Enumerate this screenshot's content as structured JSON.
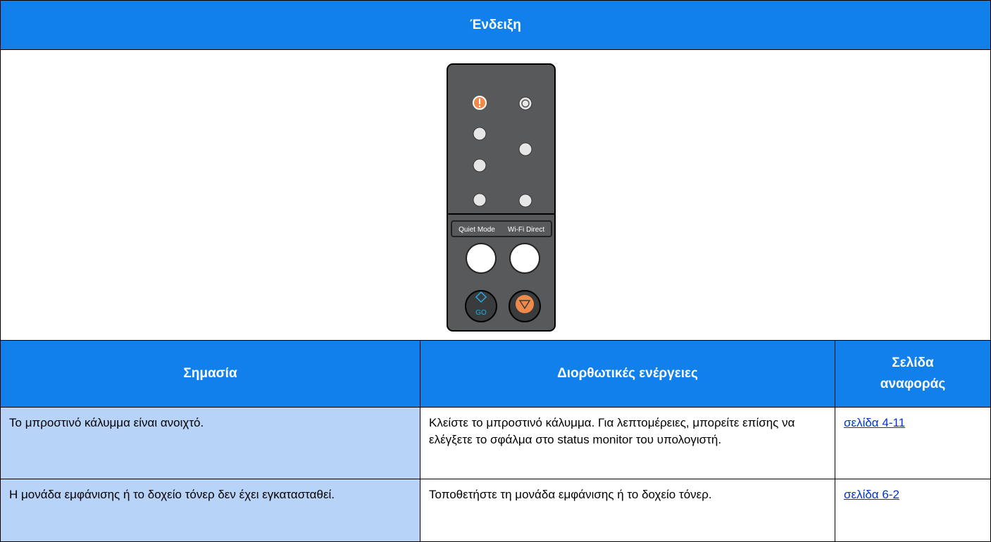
{
  "header": {
    "title": "Ένδειξη"
  },
  "panel": {
    "labels": [
      "Quiet Mode",
      "Wi-Fi Direct"
    ],
    "go_label": "GO"
  },
  "table": {
    "columns": [
      "Σημασία",
      "Διορθωτικές ενέργειες",
      "Σελίδα αναφοράς"
    ],
    "rows": [
      [
        "Το μπροστινό κάλυμμα είναι ανοιχτό.",
        "Κλείστε το μπροστινό κάλυμμα. Για λεπτομέρειες, μπορείτε επίσης να ελέγξετε το σφάλμα στο status monitor του υπολογιστή.",
        "σελίδα 4-11"
      ],
      [
        "Η μονάδα εμφάνισης ή το δοχείο τόνερ δεν έχει εγκατασταθεί.",
        "Τοποθετήστε τη μονάδα εμφάνισης ή το δοχείο τόνερ.",
        "σελίδα 6-2"
      ]
    ]
  }
}
